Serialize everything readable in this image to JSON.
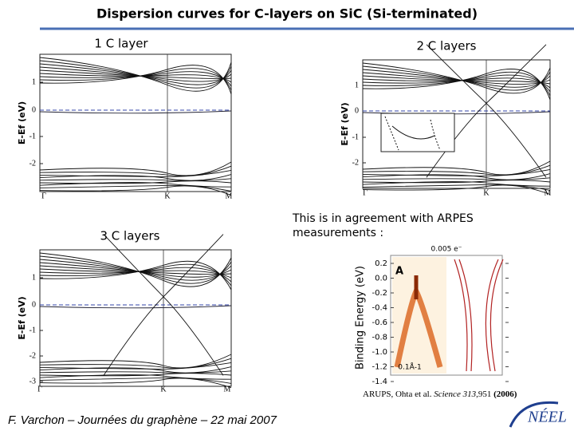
{
  "title": "Dispersion curves for C-layers on SiC (Si-terminated)",
  "panels": [
    {
      "label": "1 C layer",
      "ylabel": "E-Ef (eV)",
      "yticks": [
        "1",
        "0",
        "-1",
        "-2"
      ],
      "xticks": [
        "Γ",
        "K",
        "M"
      ]
    },
    {
      "label": "2 C layers",
      "ylabel": "E-Ef (eV)",
      "yticks": [
        "1",
        "0",
        "-1",
        "-2"
      ],
      "xticks": [
        "Γ",
        "K",
        "M"
      ]
    },
    {
      "label": "3 C layers",
      "ylabel": "E-Ef (eV)",
      "yticks": [
        "1",
        "0",
        "-1",
        "-2",
        "-3"
      ],
      "xticks": [
        "Γ",
        "K",
        "M"
      ]
    }
  ],
  "arpes": {
    "text": "This is in agreement with ARPES measurements :",
    "ylabel": "Binding Energy (eV)",
    "yticks": [
      "0.2",
      "0.0",
      "-0.2",
      "-0.4",
      "-0.6",
      "-0.8",
      "-1.0",
      "-1.2",
      "-1.4"
    ],
    "top_label": "0.005 e⁻",
    "panel_letter": "A",
    "scale": "0.1Å-1",
    "caption": [
      "ARUPS, Ohta et al. ",
      "Science 313",
      ",951 ",
      "(2006)"
    ]
  },
  "footer": "F. Varchon – Journées du graphène – 22 mai 2007",
  "logo": "NÉEL"
}
